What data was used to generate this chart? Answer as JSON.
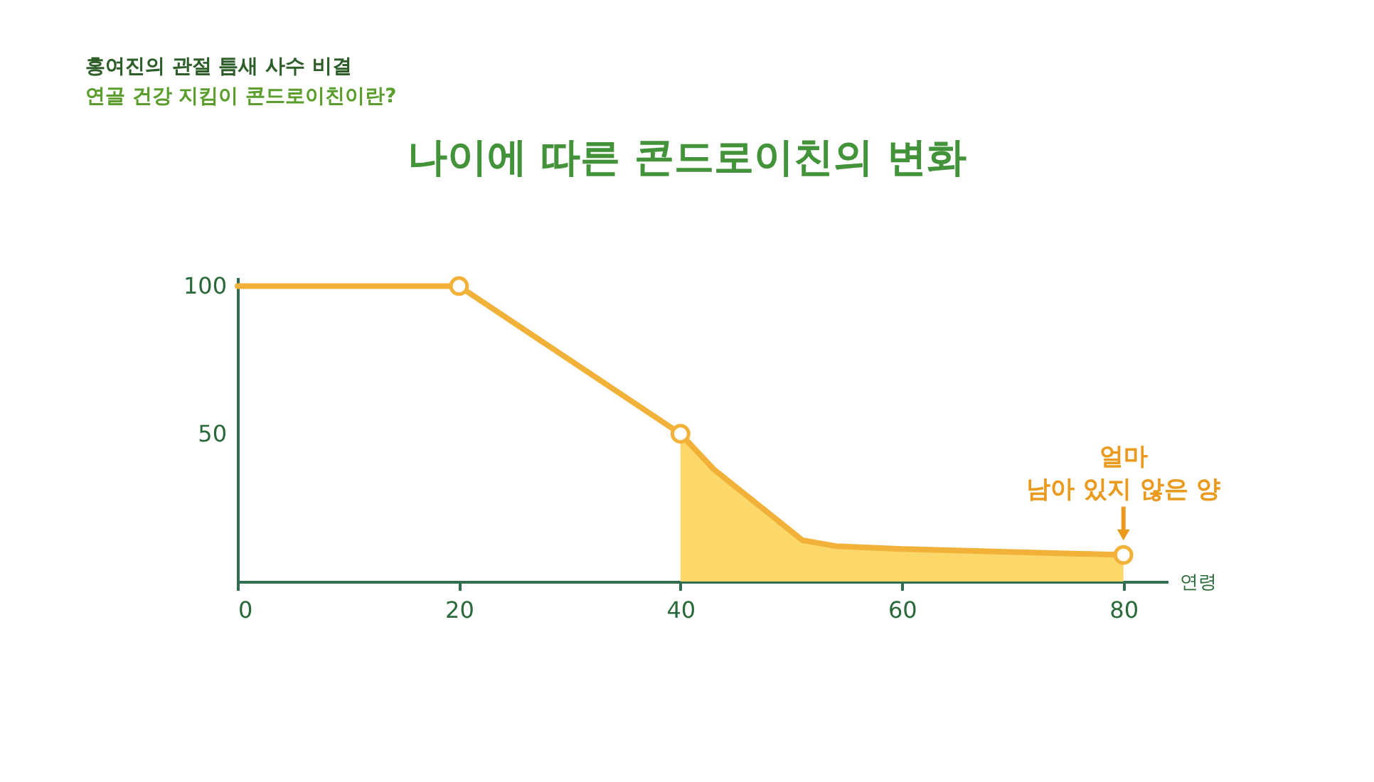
{
  "chart_data": {
    "type": "line",
    "title": "나이에 따른 콘드로이친의 변화",
    "xlabel": "연령",
    "annotations": [
      "홍여진의 관절 틈새 사수 비결",
      "연골 건강 지킴이 콘드로이친이란?",
      {
        "text": "얼마\n남아 있지 않은 양",
        "x": 80,
        "y": 9
      }
    ],
    "series": [
      {
        "type": "area",
        "color": "#fcd86b",
        "x": [
          40,
          43,
          47,
          49,
          51,
          54,
          60,
          70,
          80
        ],
        "values": [
          50,
          38,
          26,
          20,
          14,
          12,
          11,
          10,
          9
        ]
      },
      {
        "color": "#f2b23a",
        "x": [
          0,
          20,
          40,
          43,
          47,
          49,
          51,
          54,
          60,
          70,
          80
        ],
        "values": [
          100,
          100,
          50,
          38,
          26,
          20,
          14,
          12,
          11,
          10,
          9
        ]
      },
      {
        "type": "scatter",
        "color": "#f2b23a",
        "marker": "circle",
        "x": [
          20,
          40,
          80
        ],
        "values": [
          100,
          50,
          9
        ]
      }
    ],
    "xlim": [
      0,
      84
    ],
    "xticks": [
      0,
      20,
      40,
      60,
      80
    ],
    "ylim": [
      0,
      103
    ],
    "yticks": [
      50,
      100
    ]
  }
}
